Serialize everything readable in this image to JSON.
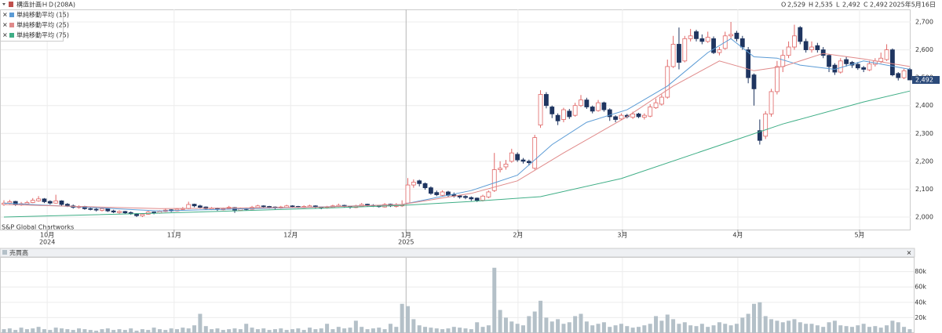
{
  "chart_data": {
    "type": "candlestick",
    "title": "構造計画ＨＤ(208A)",
    "date": "2025年5月16日",
    "ohlc_keys": [
      "O",
      "H",
      "L",
      "C"
    ],
    "ohlc_labels": [
      "2,529",
      "2,535",
      "2,492",
      "2,492"
    ],
    "last_label": "2,492",
    "source": "S&P Global Chartworks",
    "up_color": "#e06666",
    "down_color": "#1f3560",
    "candles": [
      [
        2045,
        2060,
        2040,
        2050
      ],
      [
        2050,
        2062,
        2046,
        2055
      ],
      [
        2056,
        2058,
        2040,
        2045
      ],
      [
        2044,
        2054,
        2040,
        2048
      ],
      [
        2047,
        2058,
        2044,
        2052
      ],
      [
        2052,
        2068,
        2050,
        2060
      ],
      [
        2058,
        2075,
        2055,
        2065
      ],
      [
        2065,
        2068,
        2050,
        2055
      ],
      [
        2056,
        2060,
        2045,
        2050
      ],
      [
        2050,
        2080,
        2048,
        2058
      ],
      [
        2058,
        2060,
        2040,
        2045
      ],
      [
        2046,
        2050,
        2036,
        2040
      ],
      [
        2040,
        2045,
        2030,
        2035
      ],
      [
        2034,
        2042,
        2030,
        2038
      ],
      [
        2038,
        2040,
        2026,
        2030
      ],
      [
        2030,
        2035,
        2024,
        2028
      ],
      [
        2028,
        2032,
        2020,
        2025
      ],
      [
        2024,
        2034,
        2020,
        2030
      ],
      [
        2030,
        2032,
        2018,
        2022
      ],
      [
        2022,
        2026,
        2014,
        2018
      ],
      [
        2016,
        2024,
        2012,
        2020
      ],
      [
        2020,
        2022,
        2010,
        2015
      ],
      [
        2016,
        2020,
        2008,
        2012
      ],
      [
        2012,
        2014,
        2000,
        2005
      ],
      [
        2004,
        2014,
        2000,
        2010
      ],
      [
        2010,
        2022,
        2008,
        2018
      ],
      [
        2018,
        2020,
        2010,
        2015
      ],
      [
        2014,
        2024,
        2012,
        2020
      ],
      [
        2020,
        2030,
        2018,
        2025
      ],
      [
        2026,
        2028,
        2018,
        2022
      ],
      [
        2022,
        2032,
        2020,
        2028
      ],
      [
        2028,
        2036,
        2024,
        2030
      ],
      [
        2030,
        2055,
        2028,
        2045
      ],
      [
        2046,
        2048,
        2035,
        2040
      ],
      [
        2040,
        2044,
        2030,
        2035
      ],
      [
        2036,
        2038,
        2026,
        2030
      ],
      [
        2028,
        2036,
        2025,
        2032
      ],
      [
        2032,
        2034,
        2022,
        2028
      ],
      [
        2026,
        2034,
        2024,
        2030
      ],
      [
        2030,
        2040,
        2028,
        2035
      ],
      [
        2034,
        2036,
        2015,
        2025
      ],
      [
        2024,
        2034,
        2022,
        2030
      ],
      [
        2030,
        2032,
        2024,
        2028
      ],
      [
        2028,
        2040,
        2026,
        2035
      ],
      [
        2034,
        2044,
        2030,
        2040
      ],
      [
        2040,
        2042,
        2034,
        2038
      ],
      [
        2038,
        2040,
        2030,
        2035
      ],
      [
        2036,
        2038,
        2028,
        2032
      ],
      [
        2032,
        2040,
        2030,
        2036
      ],
      [
        2034,
        2044,
        2032,
        2040
      ],
      [
        2040,
        2042,
        2034,
        2038
      ],
      [
        2038,
        2040,
        2032,
        2035
      ],
      [
        2034,
        2042,
        2032,
        2038
      ],
      [
        2036,
        2044,
        2034,
        2040
      ],
      [
        2040,
        2042,
        2032,
        2036
      ],
      [
        2036,
        2038,
        2028,
        2032
      ],
      [
        2032,
        2040,
        2030,
        2035
      ],
      [
        2034,
        2044,
        2032,
        2040
      ],
      [
        2038,
        2048,
        2036,
        2042
      ],
      [
        2042,
        2044,
        2034,
        2038
      ],
      [
        2038,
        2040,
        2030,
        2035
      ],
      [
        2034,
        2044,
        2032,
        2040
      ],
      [
        2038,
        2050,
        2036,
        2045
      ],
      [
        2046,
        2048,
        2038,
        2042
      ],
      [
        2042,
        2046,
        2036,
        2040
      ],
      [
        2040,
        2042,
        2034,
        2038
      ],
      [
        2036,
        2050,
        2034,
        2045
      ],
      [
        2046,
        2048,
        2036,
        2040
      ],
      [
        2038,
        2050,
        2034,
        2042
      ],
      [
        2040,
        2060,
        2036,
        2045
      ],
      [
        2050,
        2140,
        2048,
        2115
      ],
      [
        2115,
        2135,
        2105,
        2125
      ],
      [
        2130,
        2134,
        2110,
        2120
      ],
      [
        2120,
        2124,
        2098,
        2105
      ],
      [
        2105,
        2110,
        2080,
        2085
      ],
      [
        2088,
        2095,
        2075,
        2080
      ],
      [
        2078,
        2096,
        2074,
        2090
      ],
      [
        2090,
        2094,
        2072,
        2078
      ],
      [
        2080,
        2088,
        2070,
        2075
      ],
      [
        2076,
        2080,
        2066,
        2072
      ],
      [
        2074,
        2078,
        2064,
        2070
      ],
      [
        2070,
        2074,
        2058,
        2065
      ],
      [
        2068,
        2070,
        2054,
        2060
      ],
      [
        2060,
        2080,
        2056,
        2075
      ],
      [
        2072,
        2095,
        2068,
        2090
      ],
      [
        2095,
        2230,
        2090,
        2170
      ],
      [
        2170,
        2200,
        2160,
        2175
      ],
      [
        2180,
        2205,
        2170,
        2190
      ],
      [
        2200,
        2245,
        2195,
        2230
      ],
      [
        2225,
        2232,
        2198,
        2205
      ],
      [
        2205,
        2212,
        2192,
        2200
      ],
      [
        2200,
        2206,
        2185,
        2195
      ],
      [
        2175,
        2295,
        2170,
        2285
      ],
      [
        2330,
        2455,
        2320,
        2440
      ],
      [
        2440,
        2448,
        2390,
        2400
      ],
      [
        2395,
        2400,
        2355,
        2370
      ],
      [
        2365,
        2372,
        2330,
        2345
      ],
      [
        2350,
        2392,
        2340,
        2385
      ],
      [
        2380,
        2388,
        2352,
        2360
      ],
      [
        2365,
        2410,
        2360,
        2400
      ],
      [
        2400,
        2438,
        2395,
        2420
      ],
      [
        2420,
        2428,
        2388,
        2395
      ],
      [
        2395,
        2400,
        2372,
        2380
      ],
      [
        2382,
        2420,
        2378,
        2410
      ],
      [
        2410,
        2414,
        2378,
        2385
      ],
      [
        2385,
        2390,
        2345,
        2360
      ],
      [
        2360,
        2365,
        2340,
        2350
      ],
      [
        2352,
        2372,
        2348,
        2365
      ],
      [
        2365,
        2370,
        2354,
        2360
      ],
      [
        2358,
        2378,
        2352,
        2370
      ],
      [
        2370,
        2374,
        2355,
        2360
      ],
      [
        2358,
        2372,
        2350,
        2365
      ],
      [
        2362,
        2405,
        2358,
        2395
      ],
      [
        2392,
        2425,
        2388,
        2410
      ],
      [
        2405,
        2440,
        2400,
        2430
      ],
      [
        2430,
        2565,
        2425,
        2540
      ],
      [
        2540,
        2650,
        2535,
        2620
      ],
      [
        2620,
        2680,
        2530,
        2555
      ],
      [
        2560,
        2650,
        2555,
        2640
      ],
      [
        2640,
        2675,
        2630,
        2650
      ],
      [
        2665,
        2672,
        2630,
        2640
      ],
      [
        2640,
        2655,
        2620,
        2630
      ],
      [
        2630,
        2665,
        2625,
        2645
      ],
      [
        2640,
        2648,
        2585,
        2590
      ],
      [
        2590,
        2610,
        2580,
        2600
      ],
      [
        2605,
        2665,
        2600,
        2650
      ],
      [
        2650,
        2700,
        2640,
        2655
      ],
      [
        2660,
        2668,
        2630,
        2640
      ],
      [
        2640,
        2650,
        2600,
        2610
      ],
      [
        2600,
        2610,
        2480,
        2500
      ],
      [
        2510,
        2515,
        2400,
        2460
      ],
      [
        2310,
        2350,
        2260,
        2275
      ],
      [
        2290,
        2380,
        2280,
        2370
      ],
      [
        2370,
        2460,
        2360,
        2450
      ],
      [
        2450,
        2560,
        2440,
        2540
      ],
      [
        2540,
        2600,
        2520,
        2580
      ],
      [
        2580,
        2630,
        2570,
        2610
      ],
      [
        2610,
        2690,
        2600,
        2650
      ],
      [
        2680,
        2685,
        2620,
        2630
      ],
      [
        2630,
        2640,
        2590,
        2600
      ],
      [
        2600,
        2630,
        2590,
        2610
      ],
      [
        2615,
        2625,
        2590,
        2600
      ],
      [
        2600,
        2610,
        2570,
        2580
      ],
      [
        2580,
        2585,
        2520,
        2540
      ],
      [
        2545,
        2552,
        2510,
        2520
      ],
      [
        2520,
        2570,
        2515,
        2560
      ],
      [
        2565,
        2575,
        2540,
        2550
      ],
      [
        2555,
        2560,
        2535,
        2545
      ],
      [
        2548,
        2556,
        2528,
        2535
      ],
      [
        2536,
        2542,
        2520,
        2530
      ],
      [
        2528,
        2560,
        2524,
        2550
      ],
      [
        2548,
        2570,
        2540,
        2560
      ],
      [
        2558,
        2590,
        2552,
        2570
      ],
      [
        2565,
        2620,
        2560,
        2600
      ],
      [
        2600,
        2605,
        2505,
        2510
      ],
      [
        2515,
        2520,
        2490,
        2500
      ],
      [
        2500,
        2532,
        2495,
        2525
      ],
      [
        2529,
        2535,
        2492,
        2492
      ]
    ],
    "ylim": [
      1955,
      2745
    ],
    "yticks": [
      {
        "value": 2000,
        "label": "2,000"
      },
      {
        "value": 2100,
        "label": "2,100"
      },
      {
        "value": 2200,
        "label": "2,200"
      },
      {
        "value": 2300,
        "label": "2,300"
      },
      {
        "value": 2400,
        "label": "2,400"
      },
      {
        "value": 2500,
        "label": "2,500"
      },
      {
        "value": 2600,
        "label": "2,600"
      },
      {
        "value": 2700,
        "label": "2,700"
      }
    ],
    "xticks": [
      {
        "value": 7.5,
        "label": "10月"
      },
      {
        "value": 29.5,
        "label": "11月"
      },
      {
        "value": 49.7,
        "label": "12月"
      },
      {
        "value": 69.7,
        "label": "1月"
      },
      {
        "value": 89.1,
        "label": "2月"
      },
      {
        "value": 107.2,
        "label": "3月"
      },
      {
        "value": 127.2,
        "label": "4月"
      },
      {
        "value": 148.3,
        "label": "5月"
      }
    ],
    "year_labels": [
      {
        "value": 7.5,
        "label": "2024"
      },
      {
        "value": 69.7,
        "label": "2025"
      }
    ],
    "series": [
      {
        "name": "単純移動平均 (15)",
        "color": "#5b9bd5",
        "x": [
          0,
          27,
          54,
          69,
          81,
          89,
          95,
          101,
          108,
          115,
          122,
          126,
          130,
          134,
          138,
          144,
          149,
          157
        ],
        "values": [
          2050,
          2022,
          2036,
          2045,
          2095,
          2150,
          2260,
          2340,
          2385,
          2470,
          2590,
          2640,
          2575,
          2570,
          2545,
          2530,
          2560,
          2530
        ]
      },
      {
        "name": "単純移動平均 (25)",
        "color": "#e08a8a",
        "x": [
          0,
          27,
          54,
          69,
          81,
          89,
          97,
          108,
          116,
          124,
          130,
          135,
          142,
          149,
          157
        ],
        "values": [
          2045,
          2030,
          2035,
          2045,
          2085,
          2130,
          2230,
          2360,
          2470,
          2560,
          2525,
          2540,
          2587,
          2567,
          2540
        ]
      },
      {
        "name": "単純移動平均 (75)",
        "color": "#3fae86",
        "x": [
          0,
          27,
          54,
          69,
          81,
          93,
          107,
          127,
          135,
          149,
          157
        ],
        "values": [
          2000,
          2014,
          2031,
          2042,
          2056,
          2073,
          2138,
          2278,
          2334,
          2413,
          2452
        ]
      }
    ],
    "volume": {
      "title": "売買高",
      "color": "#b4c0c8",
      "ylim": [
        0,
        98000
      ],
      "yticks": [
        {
          "value": 20000,
          "label": "20k"
        },
        {
          "value": 40000,
          "label": "40k"
        },
        {
          "value": 60000,
          "label": "60k"
        },
        {
          "value": 80000,
          "label": "80k"
        }
      ],
      "values": [
        5000,
        6000,
        4000,
        7000,
        5000,
        6000,
        8000,
        5000,
        4000,
        7000,
        6000,
        5000,
        4000,
        6000,
        5000,
        4000,
        3000,
        5000,
        6000,
        4000,
        5000,
        4000,
        6000,
        3000,
        5000,
        4000,
        7000,
        5000,
        4000,
        6000,
        5000,
        7000,
        6000,
        10000,
        25000,
        9000,
        5000,
        6000,
        4000,
        5000,
        6000,
        5000,
        12000,
        7000,
        5000,
        6000,
        4000,
        5000,
        6000,
        4000,
        5000,
        6000,
        4000,
        7000,
        5000,
        6000,
        12000,
        5000,
        8000,
        6000,
        7000,
        16000,
        8000,
        5000,
        6000,
        7000,
        5000,
        12000,
        8000,
        38000,
        35000,
        18000,
        10000,
        8000,
        7000,
        6000,
        5000,
        6000,
        8000,
        7000,
        6000,
        5000,
        14000,
        8000,
        10000,
        85000,
        30000,
        20000,
        15000,
        12000,
        10000,
        22000,
        28000,
        42000,
        20000,
        15000,
        18000,
        12000,
        14000,
        22000,
        25000,
        15000,
        10000,
        12000,
        14000,
        8000,
        10000,
        12000,
        9000,
        7000,
        8000,
        10000,
        12000,
        22000,
        16000,
        24000,
        18000,
        12000,
        14000,
        10000,
        9000,
        12000,
        8000,
        10000,
        14000,
        12000,
        10000,
        12000,
        20000,
        25000,
        38000,
        40000,
        22000,
        18000,
        16000,
        14000,
        16000,
        18000,
        14000,
        12000,
        12000,
        10000,
        8000,
        14000,
        16000,
        10000,
        9000,
        8000,
        10000,
        12000,
        8000,
        9000,
        7000,
        10000,
        16000,
        14000,
        8000,
        5000
      ]
    }
  }
}
